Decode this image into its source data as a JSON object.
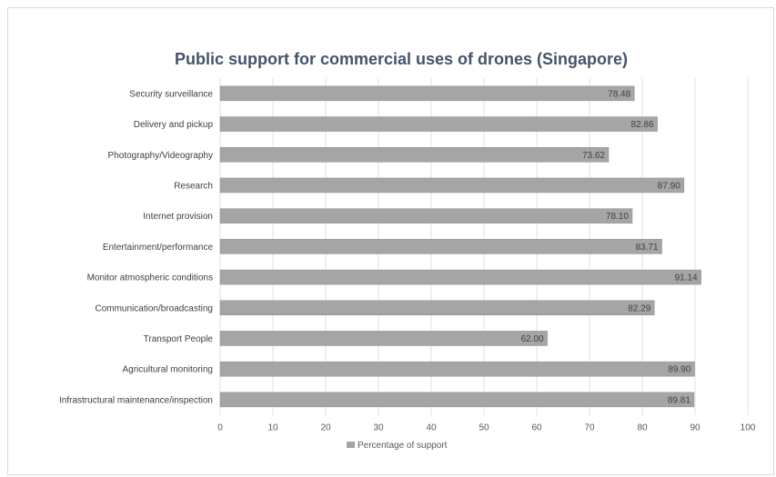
{
  "chart_data": {
    "type": "bar",
    "orientation": "horizontal",
    "title": "Public support for commercial uses of drones (Singapore)",
    "xlabel": "",
    "ylabel": "",
    "categories": [
      "Security surveillance",
      "Delivery and pickup",
      "Photography/Videography",
      "Research",
      "Internet provision",
      "Entertainment/performance",
      "Monitor atmospheric conditions",
      "Communication/broadcasting",
      "Transport People",
      "Agricultural monitoring",
      "Infrastructural maintenance/inspection"
    ],
    "series": [
      {
        "name": "Percentage of support",
        "values": [
          78.48,
          82.86,
          73.62,
          87.9,
          78.1,
          83.71,
          91.14,
          82.29,
          62.0,
          89.9,
          89.81
        ],
        "value_labels": [
          "78.48",
          "82.86",
          "73.62",
          "87.90",
          "78.10",
          "83.71",
          "91.14",
          "82.29",
          "62.00",
          "89.90",
          "89.81"
        ],
        "color": "#a5a5a5"
      }
    ],
    "xlim": [
      0,
      100
    ],
    "x_ticks": [
      "0",
      "10",
      "20",
      "30",
      "40",
      "50",
      "60",
      "70",
      "80",
      "90",
      "100"
    ],
    "grid": true,
    "legend_position": "bottom"
  }
}
